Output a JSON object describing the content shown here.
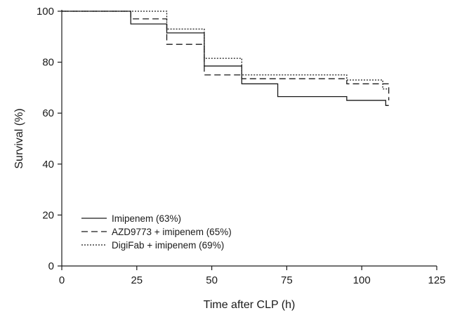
{
  "chart_data": {
    "type": "line",
    "title": "",
    "xlabel": "Time after CLP (h)",
    "ylabel": "Survival (%)",
    "xlim": [
      0,
      125
    ],
    "ylim": [
      0,
      100
    ],
    "xticks": [
      0,
      25,
      50,
      75,
      100,
      125
    ],
    "yticks": [
      0,
      20,
      40,
      60,
      80,
      100
    ],
    "grid": false,
    "legend_position": "bottom-left",
    "step": true,
    "series": [
      {
        "name": "Imipenem (63%)",
        "style": "solid",
        "x": [
          0,
          23,
          35,
          47.5,
          60,
          72,
          95,
          108,
          109
        ],
        "y": [
          100,
          95,
          91.5,
          78.5,
          71.5,
          66.5,
          65,
          63,
          63
        ]
      },
      {
        "name": "AZD9773 + imipenem (65%)",
        "style": "dashed",
        "x": [
          0,
          23,
          35,
          47.5,
          60,
          95,
          109
        ],
        "y": [
          100,
          97,
          87,
          75,
          73.5,
          71.5,
          65
        ]
      },
      {
        "name": "DigiFab + imipenem (69%)",
        "style": "dotted",
        "x": [
          0,
          23,
          35,
          47.5,
          60,
          95,
          107,
          109
        ],
        "y": [
          100,
          100,
          93,
          81.5,
          75,
          73,
          69.5,
          69.5
        ]
      }
    ]
  }
}
